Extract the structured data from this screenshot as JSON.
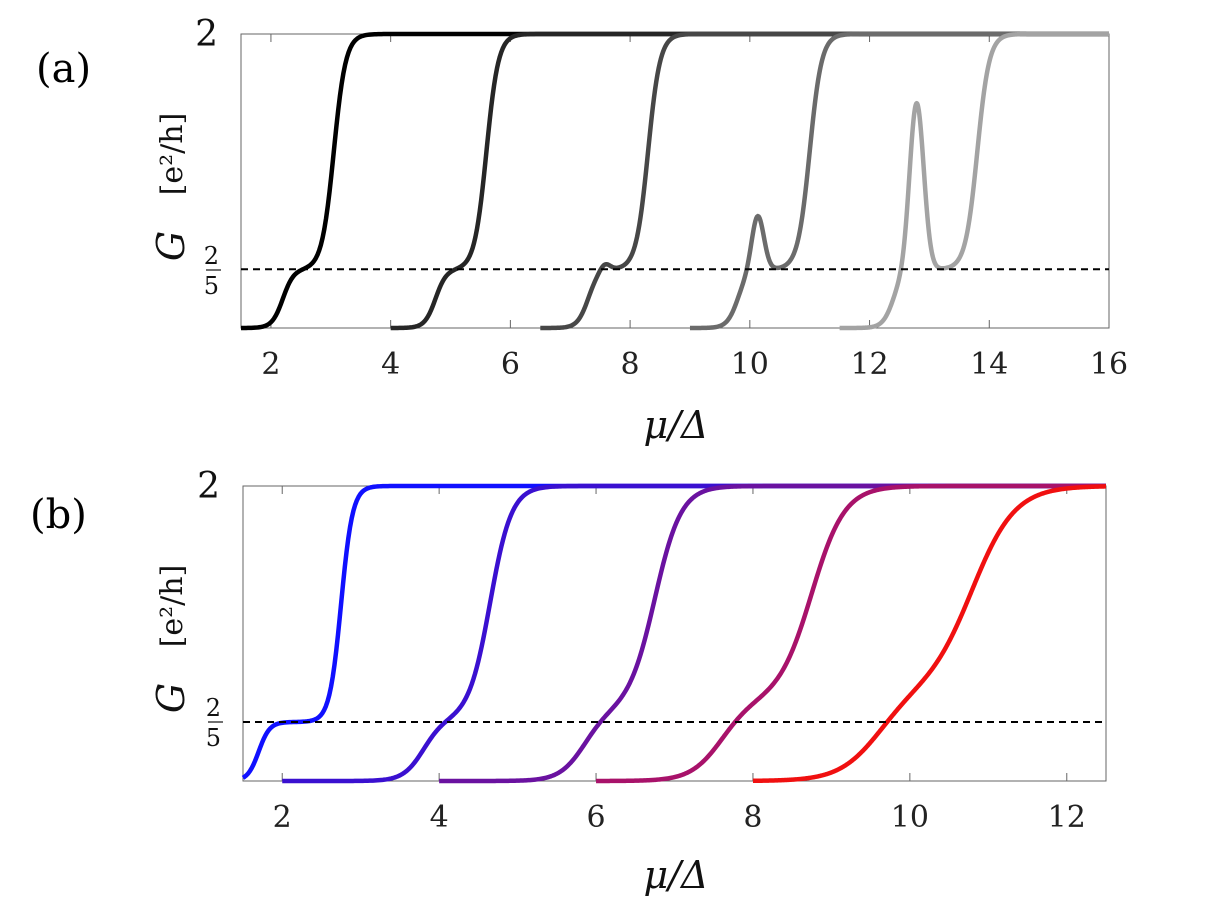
{
  "chart_data": [
    {
      "panel": "(a)",
      "type": "line",
      "xlabel": "μ/Δ",
      "ylabel": "G",
      "ylabel_unit": "[e²/h]",
      "xlim": [
        1.5,
        16
      ],
      "ylim": [
        0,
        2
      ],
      "xticks": [
        "2",
        "4",
        "6",
        "8",
        "10",
        "12",
        "14",
        "16"
      ],
      "yticks": {
        "top": "2",
        "frac_num": "2",
        "frac_den": "5"
      },
      "reference_line": {
        "y": 0.4,
        "style": "dashed"
      },
      "series": [
        {
          "name": "curve-1",
          "color": "#000000",
          "x_start": 1.5,
          "plateau": 0.4,
          "step1_center": 2.2,
          "step2_center": 3.05,
          "peak": null
        },
        {
          "name": "curve-2",
          "color": "#262626",
          "x_start": 4.0,
          "plateau": 0.4,
          "step1_center": 4.75,
          "step2_center": 5.6,
          "peak": null
        },
        {
          "name": "curve-3",
          "color": "#474747",
          "x_start": 6.5,
          "plateau": 0.4,
          "step1_center": 7.3,
          "step2_center": 8.3,
          "peak": 0.45
        },
        {
          "name": "curve-4",
          "color": "#6b6b6b",
          "x_start": 9.0,
          "plateau": 0.4,
          "step1_center": 9.8,
          "step2_center": 11.0,
          "peak": 0.78
        },
        {
          "name": "curve-5",
          "color": "#a3a3a3",
          "x_start": 11.5,
          "plateau": 0.4,
          "step1_center": 12.4,
          "step2_center": 13.8,
          "peak": 1.55
        }
      ]
    },
    {
      "panel": "(b)",
      "type": "line",
      "xlabel": "μ/Δ",
      "ylabel": "G",
      "ylabel_unit": "[e²/h]",
      "xlim": [
        1.5,
        12.5
      ],
      "ylim": [
        0,
        2
      ],
      "xticks": [
        "2",
        "4",
        "6",
        "8",
        "10",
        "12"
      ],
      "yticks": {
        "top": "2",
        "frac_num": "2",
        "frac_den": "5"
      },
      "reference_line": {
        "y": 0.4,
        "style": "dashed"
      },
      "series": [
        {
          "name": "curve-1",
          "color": "#1010ff",
          "x_start": 1.5,
          "plateau": 0.4,
          "step1_center": 1.7,
          "step2_center": 2.75,
          "width": 0.07
        },
        {
          "name": "curve-2",
          "color": "#3a10d0",
          "x_start": 2.0,
          "plateau": 0.42,
          "step1_center": 3.8,
          "step2_center": 4.65,
          "width": 0.13
        },
        {
          "name": "curve-3",
          "color": "#6a12a0",
          "x_start": 4.0,
          "plateau": 0.48,
          "step1_center": 5.85,
          "step2_center": 6.75,
          "width": 0.16
        },
        {
          "name": "curve-4",
          "color": "#a8126a",
          "x_start": 6.0,
          "plateau": 0.55,
          "step1_center": 7.6,
          "step2_center": 8.75,
          "width": 0.2
        },
        {
          "name": "curve-5",
          "color": "#f01010",
          "x_start": 8.0,
          "plateau": 0.62,
          "step1_center": 9.6,
          "step2_center": 10.8,
          "width": 0.26
        }
      ]
    }
  ]
}
